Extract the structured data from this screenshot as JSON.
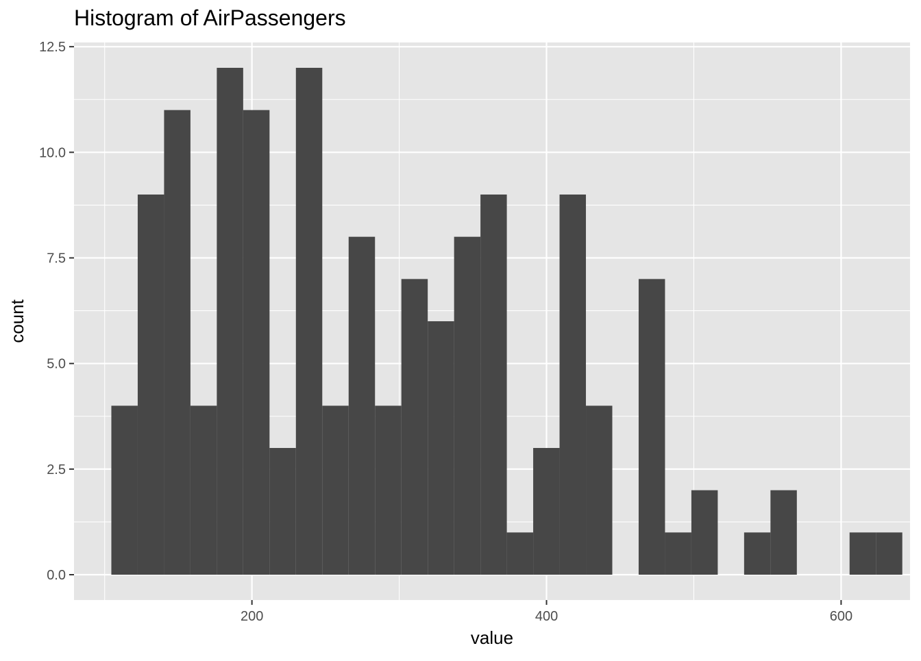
{
  "chart_data": {
    "type": "bar",
    "title": "Histogram of AirPassengers",
    "xlabel": "value",
    "ylabel": "count",
    "xlim": [
      79.2,
      646.8
    ],
    "ylim": [
      -0.6,
      12.6
    ],
    "x_ticks": [
      200,
      400,
      600
    ],
    "x_tick_labels": [
      "200",
      "400",
      "600"
    ],
    "y_ticks": [
      0,
      2.5,
      5,
      7.5,
      10,
      12.5
    ],
    "y_tick_labels": [
      "0.0",
      "2.5",
      "5.0",
      "7.5",
      "10.0",
      "12.5"
    ],
    "bin_width": 17.9,
    "bin_centers": [
      113.5,
      131.4,
      149.3,
      167.2,
      185.1,
      203.0,
      220.9,
      238.8,
      256.7,
      274.6,
      292.5,
      310.4,
      328.3,
      346.2,
      364.1,
      382.0,
      399.9,
      417.8,
      435.7,
      453.6,
      471.5,
      489.4,
      507.3,
      525.2,
      543.1,
      561.0,
      578.9,
      596.8,
      614.7,
      632.6
    ],
    "values": [
      4,
      9,
      11,
      4,
      12,
      11,
      3,
      12,
      4,
      8,
      4,
      7,
      6,
      8,
      9,
      1,
      3,
      9,
      4,
      0,
      7,
      1,
      2,
      0,
      1,
      2,
      0,
      0,
      1,
      1
    ],
    "bar_color": "#474747",
    "panel_color": "#e5e5e5",
    "grid_color": "#ffffff",
    "grid": true
  }
}
